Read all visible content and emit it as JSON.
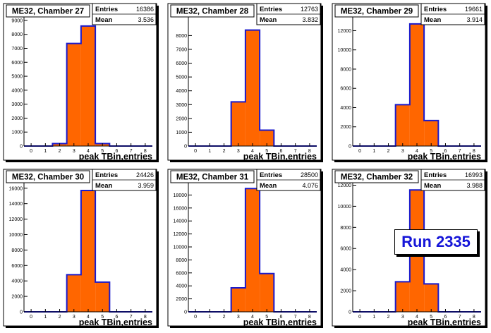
{
  "charts": [
    {
      "title": "ME32, Chamber 27",
      "xlabel": "peak TBin,entries",
      "stats": {
        "entries_label": "Entries",
        "entries": "16386",
        "mean_label": "Mean",
        "mean": "3.536"
      },
      "x_ticks": [
        "0",
        "1",
        "2",
        "3",
        "4",
        "5",
        "6",
        "7",
        "8"
      ],
      "y_ticks": [
        "0",
        "1000",
        "2000",
        "3000",
        "4000",
        "5000",
        "6000",
        "7000",
        "8000",
        "9000"
      ],
      "ylim": [
        0,
        9300
      ],
      "xlim": [
        -0.5,
        8.5
      ],
      "bin_edges": [
        1.5,
        2.5,
        3.5,
        4.5,
        5.5
      ],
      "values": [
        180,
        7350,
        8600,
        180
      ]
    },
    {
      "title": "ME32, Chamber 28",
      "xlabel": "peak TBin,entries",
      "stats": {
        "entries_label": "Entries",
        "entries": "12763",
        "mean_label": "Mean",
        "mean": "3.832"
      },
      "x_ticks": [
        "0",
        "1",
        "2",
        "3",
        "4",
        "5",
        "6",
        "7",
        "8"
      ],
      "y_ticks": [
        "0",
        "1000",
        "2000",
        "3000",
        "4000",
        "5000",
        "6000",
        "7000",
        "8000"
      ],
      "ylim": [
        0,
        9400
      ],
      "xlim": [
        -0.5,
        8.5
      ],
      "bin_edges": [
        2.5,
        3.5,
        4.5,
        5.5
      ],
      "values": [
        3200,
        8400,
        1150
      ]
    },
    {
      "title": "ME32, Chamber 29",
      "xlabel": "peak TBin,entries",
      "stats": {
        "entries_label": "Entries",
        "entries": "19661",
        "mean_label": "Mean",
        "mean": "3.914"
      },
      "x_ticks": [
        "0",
        "1",
        "2",
        "3",
        "4",
        "5",
        "6",
        "7",
        "8"
      ],
      "y_ticks": [
        "0",
        "2000",
        "4000",
        "6000",
        "8000",
        "10000",
        "12000"
      ],
      "ylim": [
        0,
        13500
      ],
      "xlim": [
        -0.5,
        8.5
      ],
      "bin_edges": [
        2.5,
        3.5,
        4.5,
        5.5
      ],
      "values": [
        4300,
        12700,
        2650
      ]
    },
    {
      "title": "ME32, Chamber 30",
      "xlabel": "peak TBin,entries",
      "stats": {
        "entries_label": "Entries",
        "entries": "24426",
        "mean_label": "Mean",
        "mean": "3.959"
      },
      "x_ticks": [
        "0",
        "1",
        "2",
        "3",
        "4",
        "5",
        "6",
        "7",
        "8"
      ],
      "y_ticks": [
        "0",
        "2000",
        "4000",
        "6000",
        "8000",
        "10000",
        "12000",
        "14000",
        "16000"
      ],
      "ylim": [
        0,
        16800
      ],
      "xlim": [
        -0.5,
        8.5
      ],
      "bin_edges": [
        2.5,
        3.5,
        4.5,
        5.5
      ],
      "values": [
        4800,
        15700,
        3850
      ]
    },
    {
      "title": "ME32, Chamber 31",
      "xlabel": "peak TBin,entries",
      "stats": {
        "entries_label": "Entries",
        "entries": "28500",
        "mean_label": "Mean",
        "mean": "4.076"
      },
      "x_ticks": [
        "0",
        "1",
        "2",
        "3",
        "4",
        "5",
        "6",
        "7",
        "8"
      ],
      "y_ticks": [
        "0",
        "2000",
        "4000",
        "6000",
        "8000",
        "10000",
        "12000",
        "14000",
        "16000",
        "18000"
      ],
      "ylim": [
        0,
        20000
      ],
      "xlim": [
        -0.5,
        8.5
      ],
      "bin_edges": [
        2.5,
        3.5,
        4.5,
        5.5
      ],
      "values": [
        3700,
        19000,
        5900
      ]
    },
    {
      "title": "ME32, Chamber 32",
      "xlabel": "peak TBin,entries",
      "stats": {
        "entries_label": "Entries",
        "entries": "16993",
        "mean_label": "Mean",
        "mean": "3.988"
      },
      "x_ticks": [
        "0",
        "1",
        "2",
        "3",
        "4",
        "5",
        "6",
        "7",
        "8"
      ],
      "y_ticks": [
        "0",
        "2000",
        "4000",
        "6000",
        "8000",
        "10000",
        "12000"
      ],
      "ylim": [
        0,
        12300
      ],
      "xlim": [
        -0.5,
        8.5
      ],
      "bin_edges": [
        2.5,
        3.5,
        4.5,
        5.5
      ],
      "values": [
        2850,
        11550,
        2650
      ]
    }
  ],
  "run_label": "Run 2335",
  "colors": {
    "fill": "#ff6600",
    "line": "#1a1acc",
    "frame": "#000000",
    "shadow": "#000000",
    "run_text": "#1515d8"
  }
}
